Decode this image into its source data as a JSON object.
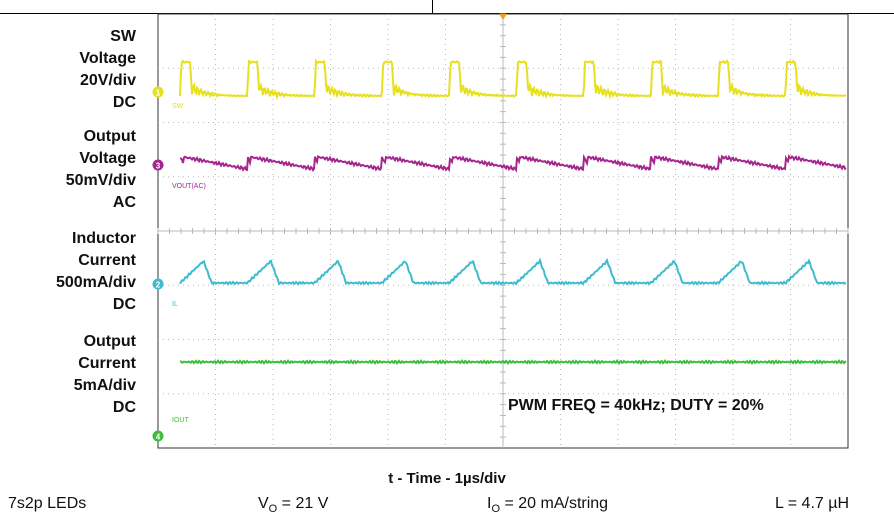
{
  "chart_data": {
    "type": "line",
    "x_label": "t - Time - 1µs/div",
    "annotation": "PWM FREQ = 40kHz; DUTY = 20%",
    "x_divisions": 12,
    "y_divisions": 8,
    "grid": true,
    "switching_period_div": 1.17,
    "channels": [
      {
        "id": "1",
        "label_lines": [
          "SW",
          "Voltage",
          "20V/div",
          "DC"
        ],
        "marker": "1",
        "tag": "SW",
        "color": "#e6e01e",
        "waveform": "switch-node pulses"
      },
      {
        "id": "3",
        "label_lines": [
          "Output",
          "Voltage",
          "50mV/div",
          "AC"
        ],
        "marker": "3",
        "tag": "VOUT(AC)",
        "color": "#a4278f",
        "waveform": "ripple sawtooth"
      },
      {
        "id": "2",
        "label_lines": [
          "Inductor",
          "Current",
          "500mA/div",
          "DC"
        ],
        "marker": "2",
        "tag": "IL",
        "color": "#3dbcd0",
        "waveform": "triangular ramp"
      },
      {
        "id": "4",
        "label_lines": [
          "Output",
          "Current",
          "5mA/div",
          "DC"
        ],
        "marker": "4",
        "tag": "IOUT",
        "color": "#3dbd3d",
        "waveform": "flat dc with noise"
      }
    ]
  },
  "conditions": {
    "leds": "7s2p LEDs",
    "vo": {
      "sym": "V",
      "sub": "O",
      "rest": " = 21 V"
    },
    "io": {
      "sym": "I",
      "sub": "O",
      "rest": " = 20 mA/string"
    },
    "l": "L = 4.7 µH"
  },
  "colors": {
    "grid": "#b9b9b9",
    "screen": "#ffffff",
    "trigger": "#f0a020"
  }
}
